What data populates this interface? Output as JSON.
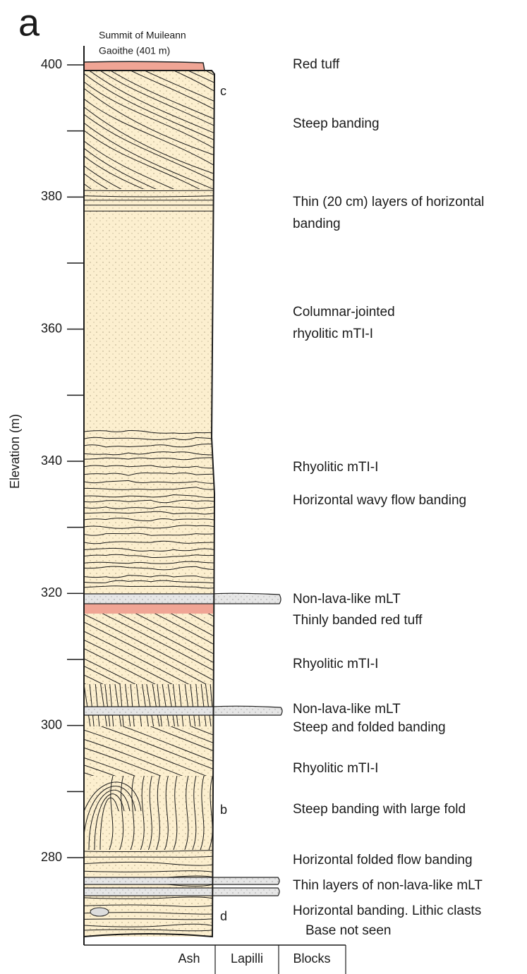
{
  "panel_label": "a",
  "summit_note": [
    "Summit of Muileann",
    "Gaoithe (401 m)"
  ],
  "elevation_axis": {
    "label": "Elevation (m)",
    "ticks": [
      400,
      380,
      360,
      340,
      320,
      300,
      280
    ],
    "minor_ticks": [
      390,
      370,
      350,
      330,
      310,
      290
    ]
  },
  "grain_size_axis": [
    "Ash",
    "Lapilli",
    "Blocks"
  ],
  "markers": [
    "c",
    "b",
    "d"
  ],
  "descriptions": [
    [
      "Red tuff"
    ],
    [
      "Steep banding"
    ],
    [
      "Thin (20 cm) layers of horizontal",
      "banding"
    ],
    [
      "Columnar-jointed",
      "rhyolitic mTI-I"
    ],
    [
      "Rhyolitic mTI-I"
    ],
    [
      "Horizontal wavy flow banding"
    ],
    [
      "Non-lava-like mLT"
    ],
    [
      "Thinly banded red tuff"
    ],
    [
      "Rhyolitic mTI-I"
    ],
    [
      "Non-lava-like mLT"
    ],
    [
      "Steep and folded banding"
    ],
    [
      "Rhyolitic mTI-I"
    ],
    [
      "Steep banding with large fold"
    ],
    [
      "Horizontal folded flow banding"
    ],
    [
      "Thin layers of non-lava-like mLT"
    ],
    [
      "Horizontal banding. Lithic clasts"
    ],
    [
      "Base not seen"
    ]
  ]
}
